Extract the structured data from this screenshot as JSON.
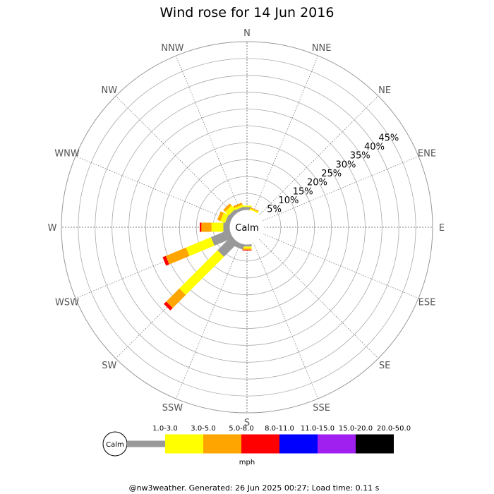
{
  "chart_data": {
    "type": "wind-rose",
    "title": "Wind rose for 14 Jun 2016",
    "directions": [
      "N",
      "NNE",
      "NE",
      "ENE",
      "E",
      "ESE",
      "SE",
      "SSE",
      "S",
      "SSW",
      "SW",
      "WSW",
      "W",
      "WNW",
      "NW",
      "NNW"
    ],
    "radial_ticks": [
      "5%",
      "10%",
      "15%",
      "20%",
      "25%",
      "30%",
      "35%",
      "40%",
      "45%"
    ],
    "radial_max": 50,
    "calm_label": "Calm",
    "speed_bins": [
      {
        "label": "1.0-3.0",
        "color": "#999999"
      },
      {
        "label": "3.0-5.0",
        "color": "#ffff00"
      },
      {
        "label": "5.0-8.0",
        "color": "#ffa500"
      },
      {
        "label": "8.0-11.0",
        "color": "#ff0000"
      },
      {
        "label": "11.0-15.0",
        "color": "#0000ff"
      },
      {
        "label": "15.0-20.0",
        "color": "#a020f0"
      },
      {
        "label": "20.0-50.0",
        "color": "#000000"
      }
    ],
    "speed_unit": "mph",
    "series": [
      {
        "direction": "N",
        "values": [
          1.0,
          0.4,
          0.0,
          0.0,
          0,
          0,
          0
        ]
      },
      {
        "direction": "NNE",
        "values": [
          0.0,
          0.5,
          0.3,
          0.0,
          0,
          0,
          0
        ]
      },
      {
        "direction": "S",
        "values": [
          0.7,
          0.6,
          0.4,
          0.2,
          0,
          0,
          0
        ]
      },
      {
        "direction": "SSW",
        "values": [
          1.6,
          0.0,
          0.0,
          0.0,
          0,
          0,
          0
        ]
      },
      {
        "direction": "SW",
        "values": [
          6.0,
          16.0,
          5.5,
          1.0,
          0,
          0,
          0
        ]
      },
      {
        "direction": "WSW",
        "values": [
          6.0,
          8.0,
          6.5,
          1.0,
          0,
          0,
          0
        ]
      },
      {
        "direction": "W",
        "values": [
          2.0,
          3.5,
          3.0,
          0.5,
          0,
          0,
          0
        ]
      },
      {
        "direction": "WNW",
        "values": [
          1.5,
          1.5,
          1.0,
          0.0,
          0,
          0,
          0
        ]
      },
      {
        "direction": "NW",
        "values": [
          1.3,
          1.5,
          0.8,
          0.0,
          0,
          0,
          0
        ]
      },
      {
        "direction": "NNW",
        "values": [
          1.0,
          0.7,
          0.6,
          0.0,
          0,
          0,
          0
        ]
      }
    ]
  },
  "footer": "@nw3weather. Generated: 26 Jun 2025 00:27; Load time: 0.11 s"
}
